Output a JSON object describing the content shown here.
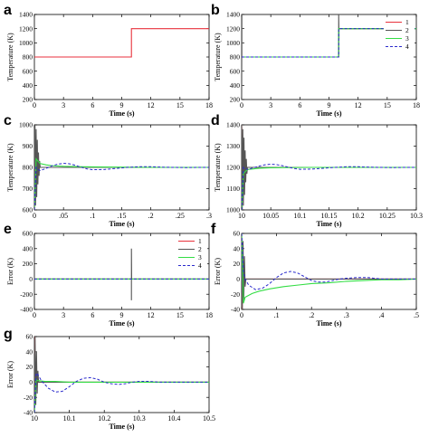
{
  "colors": {
    "s1": "#e8323c",
    "s2": "#555555",
    "s3": "#33dd44",
    "s4": "#2a2acc"
  },
  "legend_labels": [
    "1",
    "2",
    "3",
    "4"
  ],
  "chart_data": [
    {
      "id": "a",
      "panel_label": "a",
      "type": "line",
      "xlabel": "Time (s)",
      "ylabel": "Temperature (K)",
      "xlim": [
        0,
        18
      ],
      "ylim": [
        200,
        1400
      ],
      "xticks": [
        0,
        3,
        6,
        9,
        12,
        15,
        18
      ],
      "yticks": [
        200,
        400,
        600,
        800,
        1000,
        1200,
        1400
      ],
      "series": [
        {
          "color_key": "s1",
          "x": [
            0,
            10,
            10,
            18
          ],
          "y": [
            800,
            800,
            1200,
            1200
          ]
        }
      ]
    },
    {
      "id": "b",
      "panel_label": "b",
      "type": "line",
      "xlabel": "Time (s)",
      "ylabel": "Temperature (K)",
      "xlim": [
        0,
        18
      ],
      "ylim": [
        200,
        1400
      ],
      "xticks": [
        0,
        3,
        6,
        9,
        12,
        15,
        18
      ],
      "yticks": [
        200,
        400,
        600,
        800,
        1000,
        1200,
        1400
      ],
      "legend": "top-right",
      "series": [
        {
          "name": "1",
          "color_key": "s1",
          "x": [
            0,
            10,
            10,
            18
          ],
          "y": [
            800,
            800,
            1200,
            1200
          ]
        },
        {
          "name": "2",
          "color_key": "s2",
          "x": [
            0,
            0.02,
            0.02,
            10,
            10,
            10.03,
            10.03,
            18
          ],
          "y": [
            200,
            1400,
            800,
            800,
            1400,
            1050,
            1200,
            1200
          ]
        },
        {
          "name": "3",
          "color_key": "s3",
          "x": [
            0,
            10,
            10,
            18
          ],
          "y": [
            800,
            800,
            1200,
            1200
          ]
        },
        {
          "name": "4",
          "color_key": "s4",
          "dashed": true,
          "x": [
            0,
            10,
            10,
            18
          ],
          "y": [
            800,
            800,
            1200,
            1200
          ]
        }
      ]
    },
    {
      "id": "c",
      "panel_label": "c",
      "type": "line",
      "xlabel": "Time (s)",
      "ylabel": "Temperature (K)",
      "xlim": [
        0,
        0.3
      ],
      "ylim": [
        600,
        1000
      ],
      "xticks": [
        0,
        0.05,
        0.1,
        0.15,
        0.2,
        0.25,
        0.3
      ],
      "yticks": [
        600,
        700,
        800,
        900,
        1000
      ],
      "series": [
        {
          "name": "1",
          "color_key": "s1",
          "x": [
            0,
            0.002,
            0.004,
            0.3
          ],
          "y": [
            600,
            800,
            800,
            800
          ]
        },
        {
          "name": "2",
          "color_key": "s2",
          "x": [
            0,
            0.001,
            0.002,
            0.003,
            0.004,
            0.005,
            0.006,
            0.007,
            0.008,
            0.009,
            0.01,
            0.3
          ],
          "y": [
            600,
            1000,
            620,
            980,
            660,
            930,
            720,
            870,
            760,
            830,
            800,
            800
          ]
        },
        {
          "name": "3",
          "color_key": "s3",
          "x": [
            0,
            0.003,
            0.006,
            0.01,
            0.02,
            0.03,
            0.05,
            0.08,
            0.12,
            0.16,
            0.2,
            0.3
          ],
          "y": [
            600,
            840,
            830,
            818,
            812,
            808,
            805,
            803,
            802,
            801,
            800,
            800
          ]
        },
        {
          "name": "4",
          "color_key": "s4",
          "dashed": true,
          "x": [
            0,
            0.003,
            0.006,
            0.01,
            0.02,
            0.03,
            0.04,
            0.05,
            0.06,
            0.07,
            0.08,
            0.09,
            0.1,
            0.12,
            0.14,
            0.16,
            0.18,
            0.2,
            0.22,
            0.24,
            0.26,
            0.28,
            0.3
          ],
          "y": [
            600,
            800,
            790,
            785,
            795,
            807,
            815,
            819,
            817,
            810,
            801,
            793,
            789,
            790,
            795,
            800,
            803,
            803,
            801,
            800,
            799,
            800,
            800
          ]
        }
      ]
    },
    {
      "id": "d",
      "panel_label": "d",
      "type": "line",
      "xlabel": "Time (s)",
      "ylabel": "Temperature (K)",
      "xlim": [
        10,
        10.3
      ],
      "ylim": [
        1000,
        1400
      ],
      "xticks": [
        10,
        10.05,
        10.1,
        10.15,
        10.2,
        10.25,
        10.3
      ],
      "yticks": [
        1000,
        1100,
        1200,
        1300,
        1400
      ],
      "series": [
        {
          "name": "1",
          "color_key": "s1",
          "x": [
            10,
            10.002,
            10.004,
            10.3
          ],
          "y": [
            1400,
            1200,
            1200,
            1200
          ]
        },
        {
          "name": "2",
          "color_key": "s2",
          "x": [
            10,
            10.001,
            10.002,
            10.003,
            10.004,
            10.005,
            10.006,
            10.007,
            10.008,
            10.009,
            10.01,
            10.3
          ],
          "y": [
            1400,
            1000,
            1380,
            1020,
            1340,
            1070,
            1280,
            1130,
            1240,
            1170,
            1200,
            1200
          ]
        },
        {
          "name": "3",
          "color_key": "s3",
          "x": [
            10,
            10.003,
            10.006,
            10.01,
            10.02,
            10.03,
            10.05,
            10.08,
            10.12,
            10.16,
            10.2,
            10.3
          ],
          "y": [
            1000,
            1170,
            1180,
            1190,
            1193,
            1196,
            1198,
            1199,
            1200,
            1200,
            1200,
            1200
          ]
        },
        {
          "name": "4",
          "color_key": "s4",
          "dashed": true,
          "x": [
            10,
            10.003,
            10.006,
            10.01,
            10.02,
            10.03,
            10.04,
            10.05,
            10.06,
            10.07,
            10.08,
            10.09,
            10.1,
            10.12,
            10.14,
            10.16,
            10.18,
            10.2,
            10.22,
            10.24,
            10.26,
            10.28,
            10.3
          ],
          "y": [
            1000,
            1200,
            1195,
            1190,
            1198,
            1206,
            1212,
            1215,
            1213,
            1208,
            1201,
            1195,
            1191,
            1192,
            1196,
            1200,
            1203,
            1203,
            1201,
            1200,
            1199,
            1200,
            1200
          ]
        }
      ]
    },
    {
      "id": "e",
      "panel_label": "e",
      "type": "line",
      "xlabel": "Time (s)",
      "ylabel": "Error (K)",
      "xlim": [
        0,
        18
      ],
      "ylim": [
        -400,
        600
      ],
      "xticks": [
        0,
        3,
        6,
        9,
        12,
        15,
        18
      ],
      "yticks": [
        -400,
        -200,
        0,
        200,
        400,
        600
      ],
      "legend": "top-right",
      "series": [
        {
          "name": "1",
          "color_key": "s1",
          "x": [
            0,
            18
          ],
          "y": [
            0,
            0
          ]
        },
        {
          "name": "2",
          "color_key": "s2",
          "x": [
            0,
            10,
            10,
            10,
            10.02,
            18
          ],
          "y": [
            0,
            0,
            -280,
            400,
            0,
            0
          ]
        },
        {
          "name": "3",
          "color_key": "s3",
          "x": [
            0,
            18
          ],
          "y": [
            0,
            0
          ]
        },
        {
          "name": "4",
          "color_key": "s4",
          "dashed": true,
          "x": [
            0,
            18
          ],
          "y": [
            0,
            0
          ]
        }
      ]
    },
    {
      "id": "f",
      "panel_label": "f",
      "type": "line",
      "xlabel": "Time (s)",
      "ylabel": "Error (K)",
      "xlim": [
        0,
        0.5
      ],
      "ylim": [
        -40,
        60
      ],
      "xticks": [
        0,
        0.1,
        0.2,
        0.3,
        0.4,
        0.5
      ],
      "yticks": [
        -40,
        -20,
        0,
        20,
        40,
        60
      ],
      "series": [
        {
          "name": "1",
          "color_key": "s1",
          "x": [
            0,
            0.002,
            0.004,
            0.5
          ],
          "y": [
            -40,
            0,
            0,
            0
          ]
        },
        {
          "name": "2",
          "color_key": "s2",
          "x": [
            0,
            0.002,
            0.004,
            0.006,
            0.008,
            0.01,
            0.012,
            0.5
          ],
          "y": [
            60,
            -40,
            50,
            -30,
            30,
            -10,
            0,
            0
          ]
        },
        {
          "name": "3",
          "color_key": "s3",
          "x": [
            0,
            0.005,
            0.01,
            0.03,
            0.05,
            0.08,
            0.12,
            0.16,
            0.2,
            0.25,
            0.3,
            0.35,
            0.4,
            0.45,
            0.5
          ],
          "y": [
            60,
            -32,
            -24,
            -19,
            -16,
            -13,
            -10,
            -8,
            -6,
            -5,
            -3,
            -2,
            -1,
            -1,
            0
          ]
        },
        {
          "name": "4",
          "color_key": "s4",
          "dashed": true,
          "x": [
            0,
            0.005,
            0.01,
            0.02,
            0.04,
            0.06,
            0.08,
            0.1,
            0.12,
            0.14,
            0.16,
            0.18,
            0.2,
            0.22,
            0.24,
            0.26,
            0.28,
            0.3,
            0.33,
            0.36,
            0.38,
            0.4,
            0.45,
            0.5
          ],
          "y": [
            60,
            10,
            0,
            -8,
            -14,
            -12,
            -6,
            2,
            8,
            10,
            8,
            3,
            -2,
            -4,
            -4,
            -2,
            0,
            1,
            2,
            2,
            1,
            0,
            0,
            0
          ]
        }
      ]
    },
    {
      "id": "g",
      "panel_label": "g",
      "type": "line",
      "xlabel": "Time (s)",
      "ylabel": "Error (K)",
      "xlim": [
        10,
        10.5
      ],
      "ylim": [
        -40,
        60
      ],
      "xticks": [
        10,
        10.1,
        10.2,
        10.3,
        10.4,
        10.5
      ],
      "yticks": [
        -40,
        -20,
        0,
        20,
        40,
        60
      ],
      "series": [
        {
          "name": "1",
          "color_key": "s1",
          "x": [
            10,
            10.002,
            10.004,
            10.5
          ],
          "y": [
            60,
            0,
            0,
            0
          ]
        },
        {
          "name": "2",
          "color_key": "s2",
          "x": [
            10,
            10.002,
            10.004,
            10.006,
            10.008,
            10.01,
            10.012,
            10.5
          ],
          "y": [
            -40,
            60,
            -30,
            40,
            -15,
            15,
            0,
            0
          ]
        },
        {
          "name": "3",
          "color_key": "s3",
          "x": [
            10,
            10.005,
            10.01,
            10.03,
            10.06,
            10.1,
            10.15,
            10.2,
            10.3,
            10.5
          ],
          "y": [
            -40,
            3,
            2,
            1,
            1,
            0,
            0,
            0,
            0,
            0
          ]
        },
        {
          "name": "4",
          "color_key": "s4",
          "dashed": true,
          "x": [
            10,
            10.005,
            10.01,
            10.02,
            10.04,
            10.06,
            10.08,
            10.1,
            10.12,
            10.14,
            10.16,
            10.18,
            10.2,
            10.22,
            10.24,
            10.26,
            10.28,
            10.3,
            10.33,
            10.36,
            10.4,
            10.45,
            10.5
          ],
          "y": [
            -40,
            12,
            10,
            2,
            -8,
            -13,
            -12,
            -6,
            1,
            5,
            6,
            4,
            0,
            -2,
            -3,
            -2,
            0,
            1,
            1,
            0,
            0,
            0,
            0
          ]
        }
      ]
    }
  ]
}
